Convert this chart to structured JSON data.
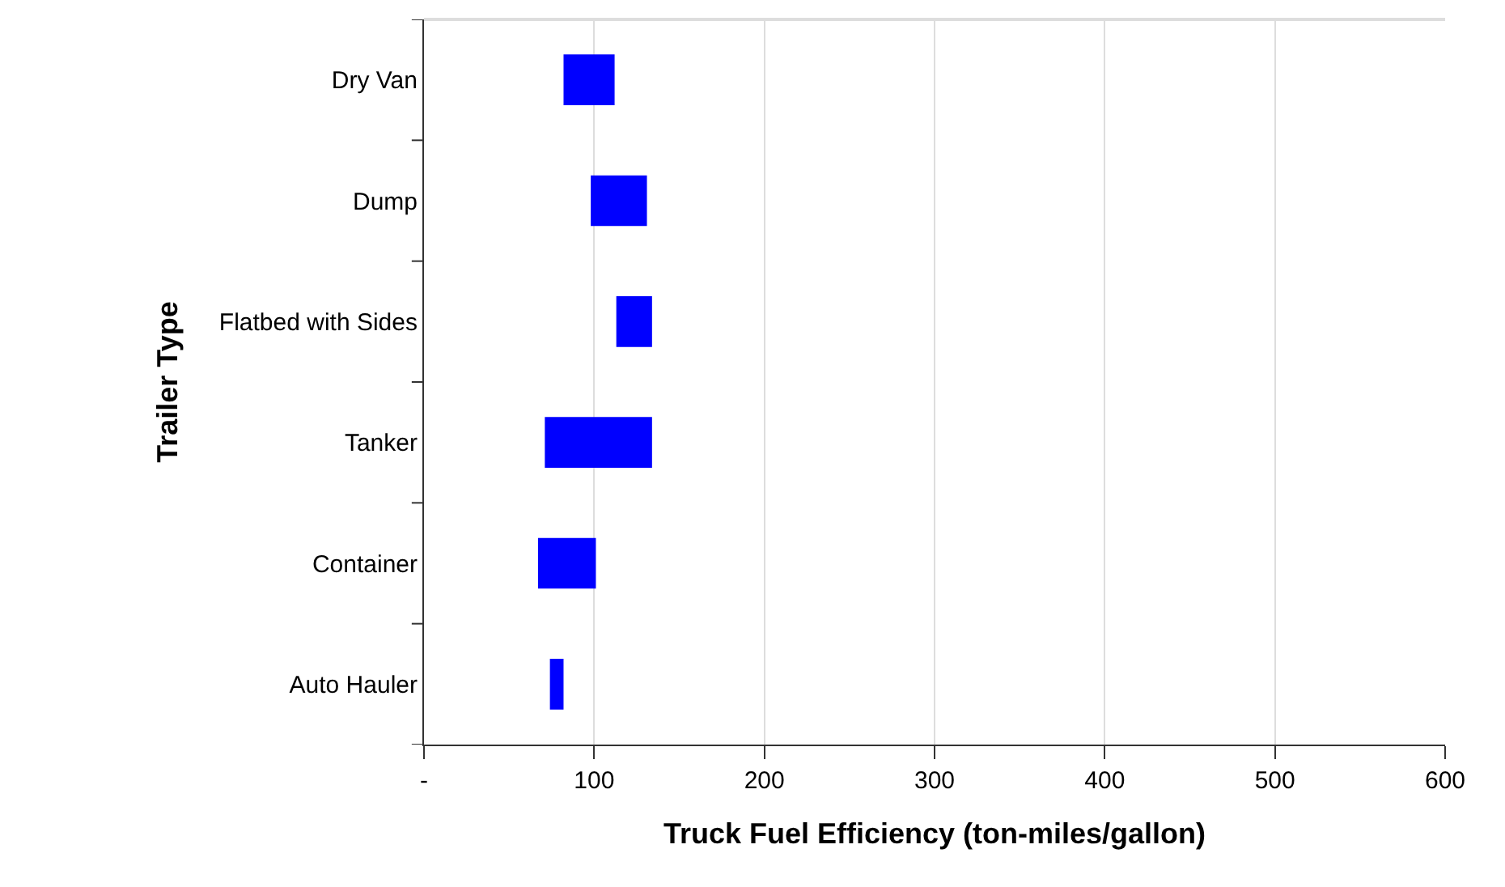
{
  "chart_data": {
    "type": "bar",
    "orientation": "horizontal",
    "xlabel": "Truck Fuel Efficiency (ton-miles/gallon)",
    "ylabel": "Trailer Type",
    "categories": [
      "Dry Van",
      "Dump",
      "Flatbed with Sides",
      "Tanker",
      "Container",
      "Auto Hauler"
    ],
    "base": [
      82,
      98,
      113,
      71,
      67,
      74
    ],
    "values": [
      30,
      33,
      21,
      63,
      34,
      8
    ],
    "color": "#0000ff",
    "xlim": [
      0,
      600
    ],
    "xticks": [
      {
        "value": 0,
        "label": "-"
      },
      100,
      200,
      300,
      400,
      500,
      600
    ],
    "grid": "x"
  }
}
